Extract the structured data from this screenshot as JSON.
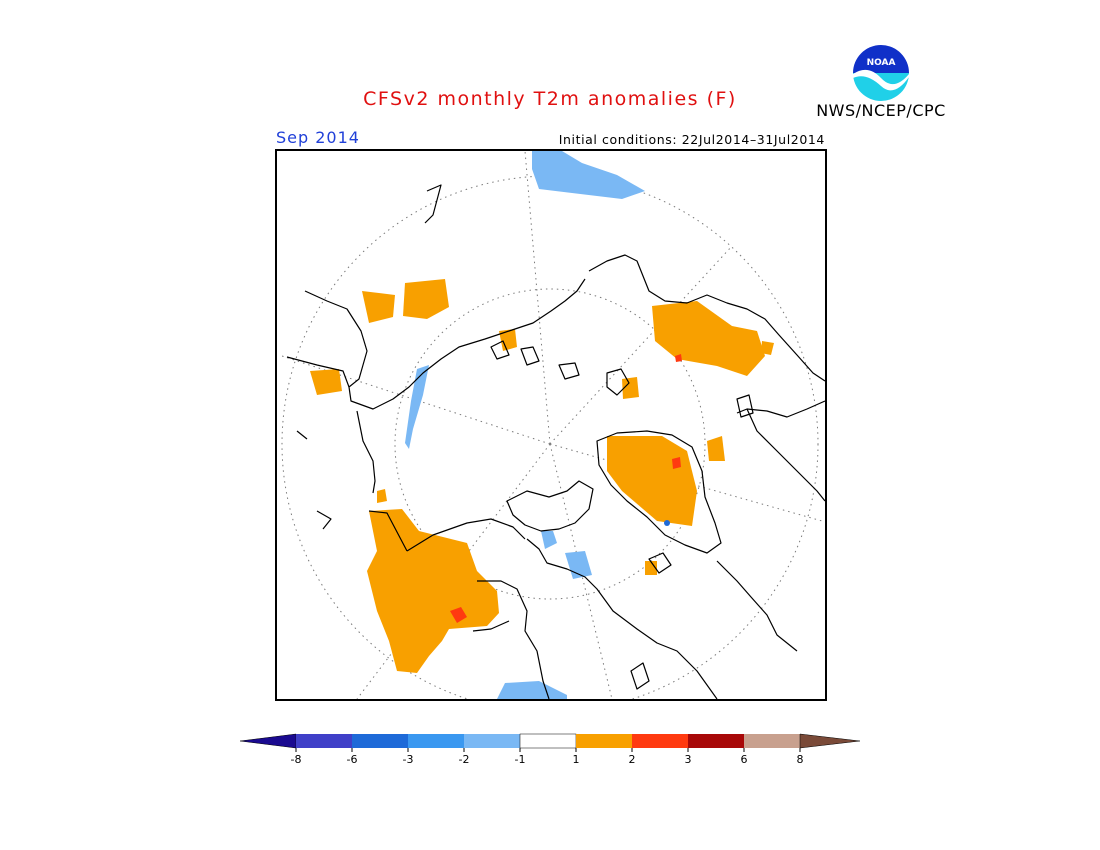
{
  "title": "CFSv2 monthly T2m anomalies (F)",
  "agency": "NWS/NCEP/CPC",
  "logo": {
    "text": "NOAA",
    "icon": "noaa-logo-icon"
  },
  "valid_month": "Sep 2014",
  "initial_conditions": "Initial conditions: 22Jul2014–31Jul2014",
  "projection": "north-polar-stereographic",
  "colorbar": {
    "ticks": [
      "-8",
      "-6",
      "-3",
      "-2",
      "-1",
      "1",
      "2",
      "3",
      "6",
      "8"
    ],
    "bins": [
      {
        "range": "< -8",
        "color": "#1a0a90"
      },
      {
        "range": "-8 to -6",
        "color": "#4040c8"
      },
      {
        "range": "-6 to -3",
        "color": "#1e6ad8"
      },
      {
        "range": "-3 to -2",
        "color": "#3a98f0"
      },
      {
        "range": "-2 to -1",
        "color": "#7ab8f4"
      },
      {
        "range": "-1 to 1",
        "color": "#ffffff"
      },
      {
        "range": "1 to 2",
        "color": "#f8a000"
      },
      {
        "range": "2 to 3",
        "color": "#ff3a10"
      },
      {
        "range": "3 to 6",
        "color": "#a80808"
      },
      {
        "range": "6 to 8",
        "color": "#c8a08e"
      },
      {
        "range": "> 8",
        "color": "#7a4a38"
      }
    ]
  }
}
